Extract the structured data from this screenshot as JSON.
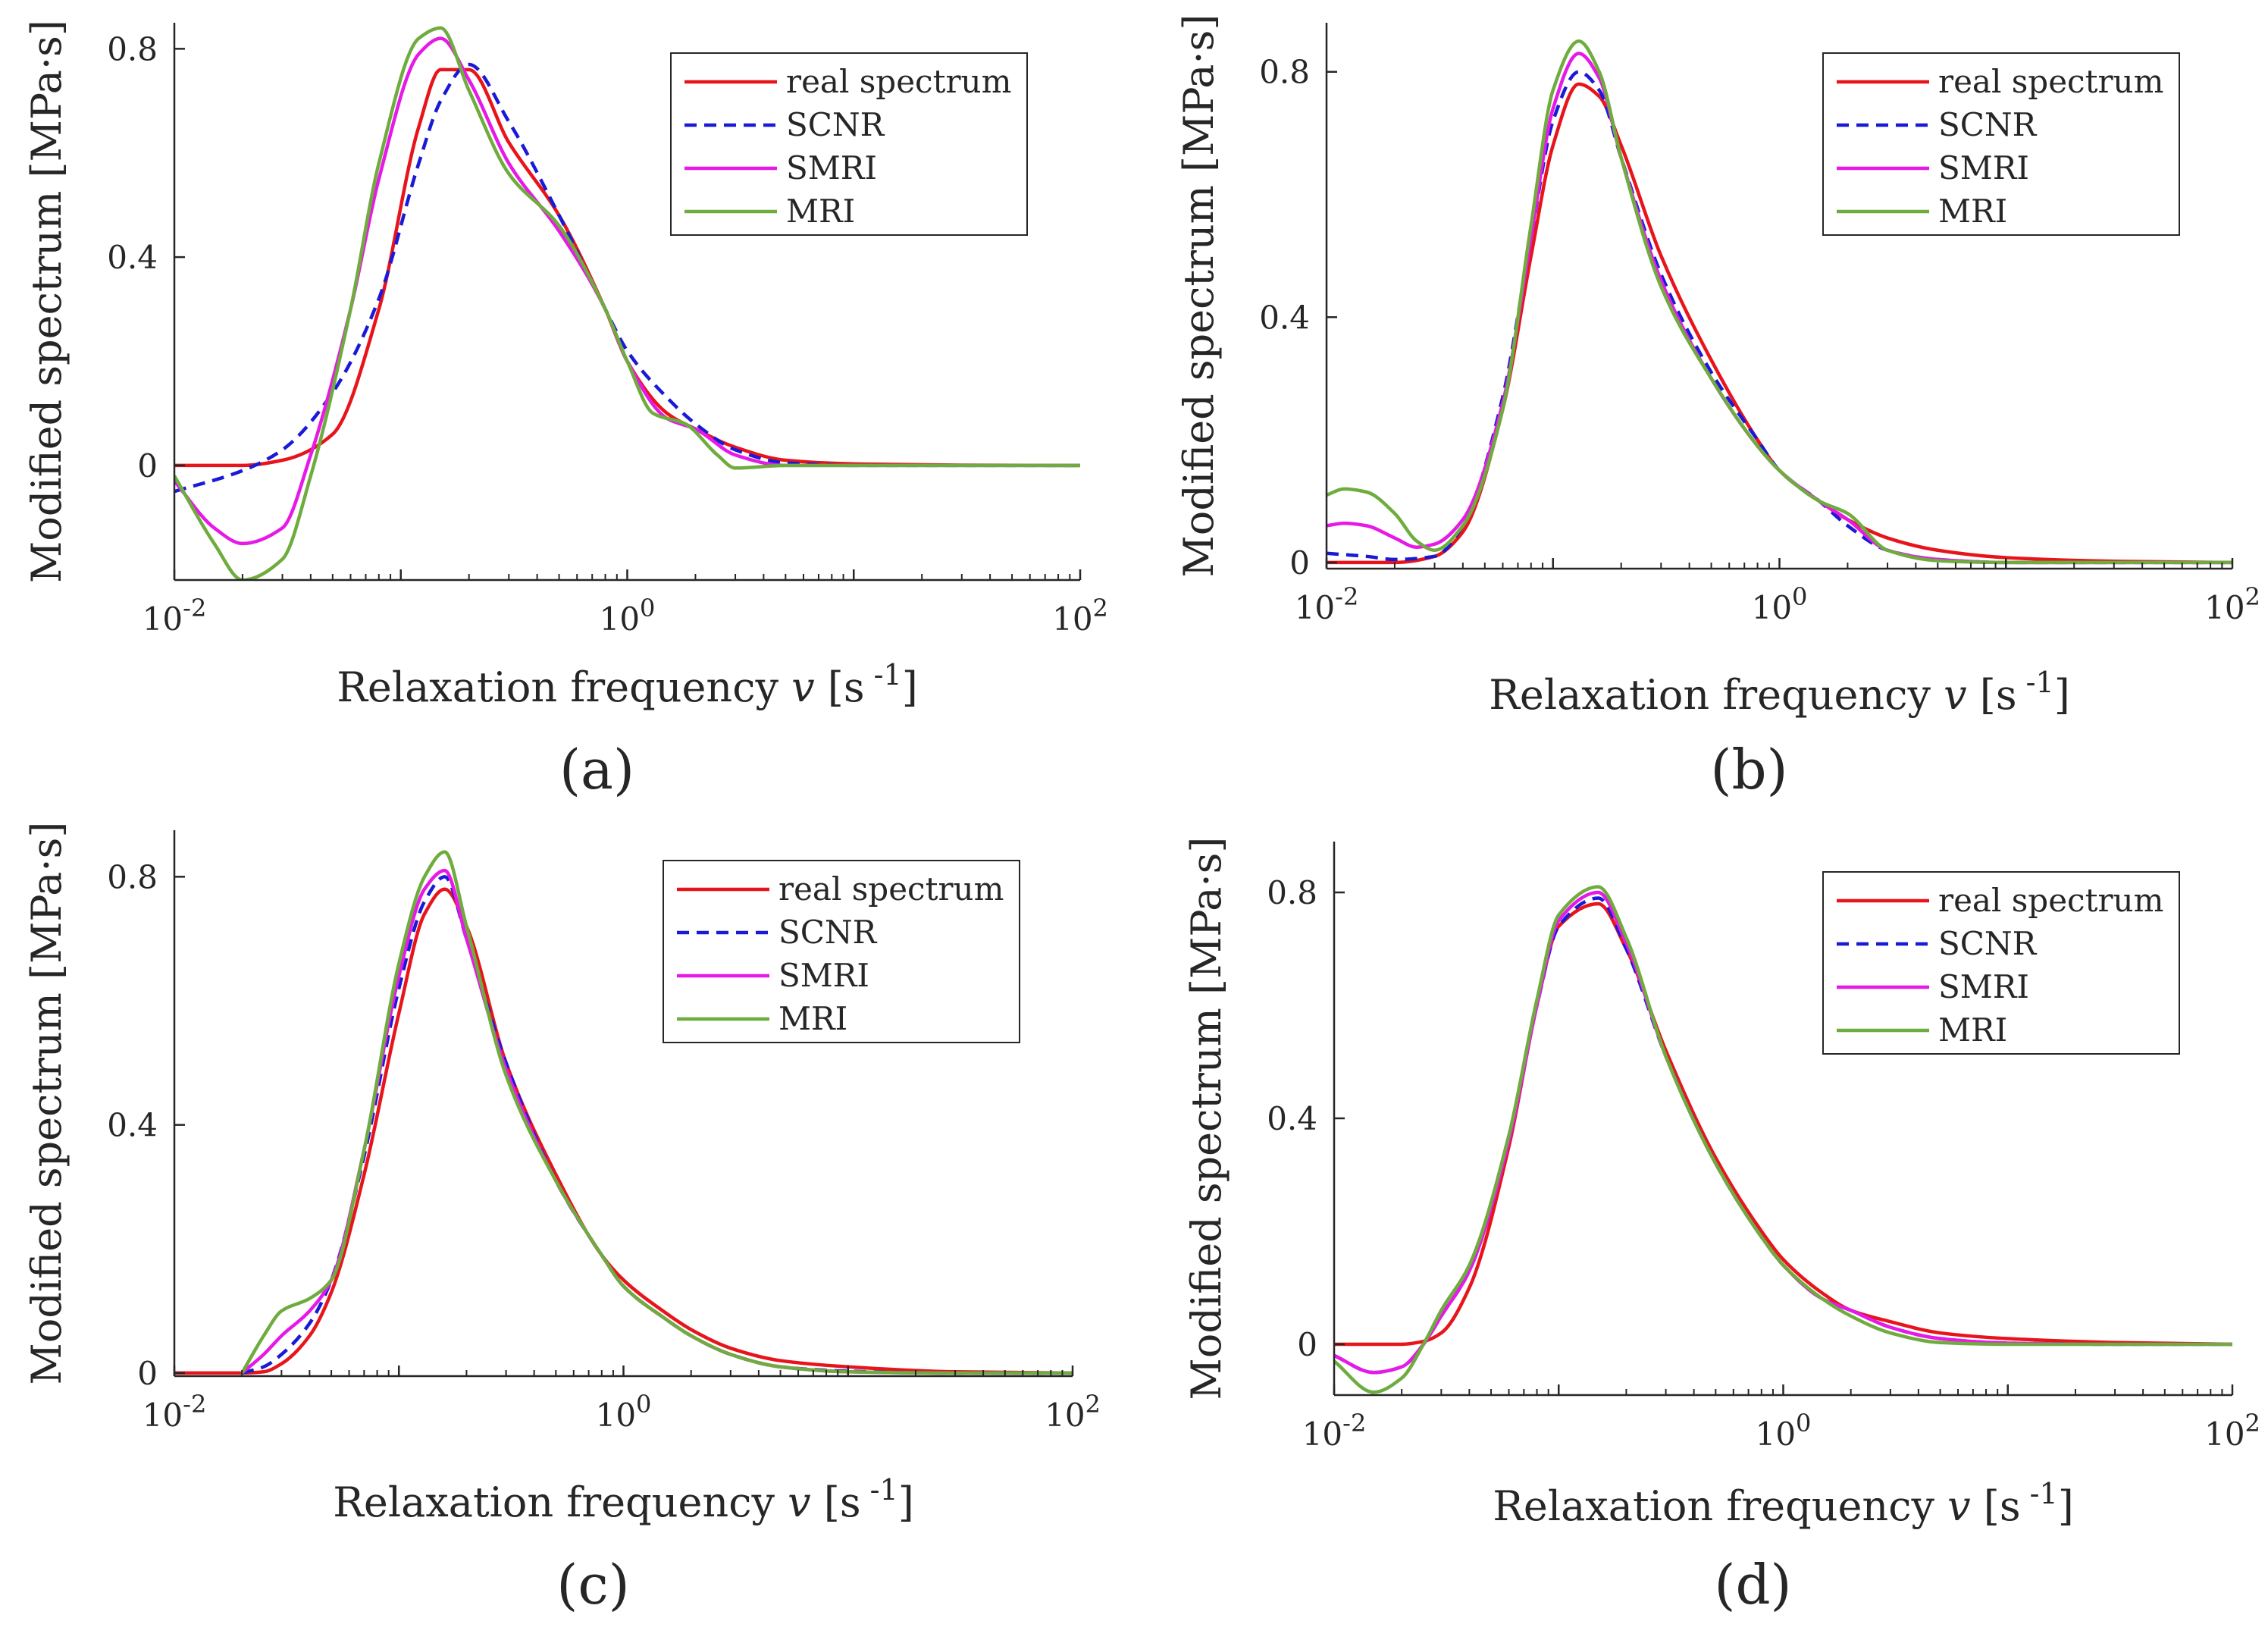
{
  "figure": {
    "panels": [
      "(a)",
      "(b)",
      "(c)",
      "(d)"
    ]
  },
  "colors": {
    "real": "#e8141b",
    "scnr": "#1a1ad6",
    "smri": "#e619e6",
    "mri": "#6fac3e",
    "axis": "#262626"
  },
  "chart_data": [
    {
      "id": "a",
      "panel_label": "(a)",
      "type": "line",
      "xscale": "log",
      "xlim": [
        0.01,
        100
      ],
      "ylim": [
        -0.22,
        0.85
      ],
      "yticks": [
        0,
        0.4,
        0.8
      ],
      "ytick_labels": [
        "0",
        "0.4",
        "0.8"
      ],
      "xticks": [
        0.01,
        1,
        100
      ],
      "xtick_bases": [
        "10",
        "10",
        "10"
      ],
      "xtick_exps": [
        "-2",
        "0",
        "2"
      ],
      "xlabel_text": "Relaxation frequency ",
      "xlabel_var": "v",
      "xlabel_unit_open": " [s",
      "xlabel_unit_exp": " -1",
      "xlabel_unit_close": "]",
      "ylabel": "Modified spectrum  [MPa·s]",
      "legend_position": "top-right",
      "legend": [
        "real spectrum",
        "SCNR",
        "SMRI",
        "MRI"
      ],
      "series": [
        {
          "name": "real spectrum",
          "x": [
            0.01,
            0.02,
            0.03,
            0.05,
            0.08,
            0.12,
            0.15,
            0.2,
            0.3,
            0.5,
            0.8,
            1.0,
            1.5,
            2.0,
            3,
            5,
            10,
            30,
            100
          ],
          "y": [
            0,
            0,
            0.01,
            0.06,
            0.3,
            0.65,
            0.76,
            0.76,
            0.62,
            0.48,
            0.3,
            0.2,
            0.1,
            0.07,
            0.035,
            0.01,
            0.003,
            0.0005,
            0
          ]
        },
        {
          "name": "SCNR",
          "x": [
            0.01,
            0.02,
            0.03,
            0.05,
            0.08,
            0.12,
            0.15,
            0.2,
            0.3,
            0.5,
            0.8,
            1.0,
            1.5,
            2.0,
            3,
            5,
            10,
            30,
            100
          ],
          "y": [
            -0.05,
            -0.01,
            0.03,
            0.14,
            0.32,
            0.58,
            0.7,
            0.77,
            0.66,
            0.48,
            0.3,
            0.22,
            0.13,
            0.08,
            0.03,
            0.005,
            0,
            0,
            0
          ]
        },
        {
          "name": "SMRI",
          "x": [
            0.01,
            0.015,
            0.02,
            0.03,
            0.04,
            0.06,
            0.08,
            0.12,
            0.15,
            0.2,
            0.3,
            0.5,
            0.8,
            1.0,
            1.5,
            2.0,
            3,
            5,
            10,
            30,
            100
          ],
          "y": [
            -0.03,
            -0.12,
            -0.15,
            -0.12,
            0.02,
            0.3,
            0.55,
            0.79,
            0.82,
            0.74,
            0.58,
            0.45,
            0.3,
            0.2,
            0.09,
            0.07,
            0.02,
            0,
            0,
            0,
            0
          ]
        },
        {
          "name": "MRI",
          "x": [
            0.01,
            0.015,
            0.02,
            0.03,
            0.04,
            0.06,
            0.08,
            0.12,
            0.15,
            0.2,
            0.3,
            0.5,
            0.8,
            1.0,
            1.3,
            1.8,
            2.5,
            3,
            5,
            10,
            30,
            100
          ],
          "y": [
            -0.02,
            -0.15,
            -0.22,
            -0.18,
            -0.02,
            0.3,
            0.58,
            0.82,
            0.84,
            0.72,
            0.56,
            0.46,
            0.3,
            0.2,
            0.1,
            0.08,
            0.02,
            -0.005,
            0,
            0,
            0,
            0
          ]
        }
      ]
    },
    {
      "id": "b",
      "panel_label": "(b)",
      "type": "line",
      "xscale": "log",
      "xlim": [
        0.01,
        100
      ],
      "ylim": [
        -0.01,
        0.88
      ],
      "yticks": [
        0,
        0.4,
        0.8
      ],
      "ytick_labels": [
        "0",
        "0.4",
        "0.8"
      ],
      "xticks": [
        0.01,
        1,
        100
      ],
      "xtick_bases": [
        "10",
        "10",
        "10"
      ],
      "xtick_exps": [
        "-2",
        "0",
        "2"
      ],
      "xlabel_text": "Relaxation frequency ",
      "xlabel_var": "v",
      "xlabel_unit_open": " [s",
      "xlabel_unit_exp": " -1",
      "xlabel_unit_close": "]",
      "ylabel": "Modified spectrum  [MPa·s]",
      "legend_position": "top-right",
      "legend": [
        "real spectrum",
        "SCNR",
        "SMRI",
        "MRI"
      ],
      "series": [
        {
          "name": "real spectrum",
          "x": [
            0.01,
            0.02,
            0.03,
            0.04,
            0.06,
            0.08,
            0.1,
            0.13,
            0.16,
            0.2,
            0.3,
            0.5,
            0.8,
            1.0,
            1.5,
            2.0,
            3,
            5,
            10,
            30,
            100
          ],
          "y": [
            0,
            0,
            0.01,
            0.05,
            0.25,
            0.5,
            0.68,
            0.78,
            0.76,
            0.68,
            0.5,
            0.33,
            0.2,
            0.15,
            0.1,
            0.07,
            0.04,
            0.02,
            0.008,
            0.002,
            0
          ]
        },
        {
          "name": "SCNR",
          "x": [
            0.01,
            0.015,
            0.02,
            0.03,
            0.04,
            0.06,
            0.08,
            0.1,
            0.13,
            0.16,
            0.2,
            0.3,
            0.5,
            0.8,
            1.0,
            1.5,
            2.0,
            3,
            5,
            10,
            30,
            100
          ],
          "y": [
            0.015,
            0.01,
            0.005,
            0.01,
            0.06,
            0.27,
            0.53,
            0.72,
            0.8,
            0.77,
            0.66,
            0.47,
            0.31,
            0.2,
            0.15,
            0.1,
            0.06,
            0.02,
            0.005,
            0,
            0,
            0
          ]
        },
        {
          "name": "SMRI",
          "x": [
            0.01,
            0.012,
            0.015,
            0.02,
            0.025,
            0.03,
            0.04,
            0.06,
            0.08,
            0.1,
            0.13,
            0.16,
            0.2,
            0.3,
            0.5,
            0.8,
            1.0,
            1.5,
            2.0,
            3,
            5,
            10,
            30,
            100
          ],
          "y": [
            0.06,
            0.064,
            0.06,
            0.04,
            0.025,
            0.03,
            0.07,
            0.26,
            0.53,
            0.74,
            0.83,
            0.79,
            0.66,
            0.46,
            0.3,
            0.19,
            0.15,
            0.1,
            0.07,
            0.02,
            0.005,
            0,
            0,
            0
          ]
        },
        {
          "name": "MRI",
          "x": [
            0.01,
            0.012,
            0.015,
            0.02,
            0.025,
            0.03,
            0.04,
            0.06,
            0.08,
            0.1,
            0.13,
            0.16,
            0.2,
            0.3,
            0.5,
            0.8,
            1.0,
            1.5,
            2.0,
            3,
            5,
            10,
            30,
            100
          ],
          "y": [
            0.11,
            0.12,
            0.115,
            0.08,
            0.035,
            0.02,
            0.06,
            0.25,
            0.55,
            0.77,
            0.85,
            0.8,
            0.66,
            0.45,
            0.3,
            0.19,
            0.15,
            0.1,
            0.08,
            0.02,
            0.003,
            0,
            0,
            0
          ]
        }
      ]
    },
    {
      "id": "c",
      "panel_label": "(c)",
      "type": "line",
      "xscale": "log",
      "xlim": [
        0.01,
        100
      ],
      "ylim": [
        -0.005,
        0.875
      ],
      "yticks": [
        0,
        0.4,
        0.8
      ],
      "ytick_labels": [
        "0",
        "0.4",
        "0.8"
      ],
      "xticks": [
        0.01,
        1,
        100
      ],
      "xtick_bases": [
        "10",
        "10",
        "10"
      ],
      "xtick_exps": [
        "-2",
        "0",
        "2"
      ],
      "xlabel_text": "Relaxation frequency ",
      "xlabel_var": "v",
      "xlabel_unit_open": " [s",
      "xlabel_unit_exp": " -1",
      "xlabel_unit_close": "]",
      "ylabel": "Modified spectrum  [MPa·s]",
      "legend_position": "top-right",
      "legend": [
        "real spectrum",
        "SCNR",
        "SMRI",
        "MRI"
      ],
      "series": [
        {
          "name": "real spectrum",
          "x": [
            0.01,
            0.02,
            0.025,
            0.03,
            0.04,
            0.05,
            0.07,
            0.1,
            0.13,
            0.16,
            0.2,
            0.3,
            0.5,
            0.8,
            1.0,
            1.5,
            2.0,
            3,
            5,
            10,
            30,
            100
          ],
          "y": [
            0,
            0,
            0.002,
            0.015,
            0.06,
            0.13,
            0.32,
            0.58,
            0.74,
            0.78,
            0.72,
            0.5,
            0.32,
            0.19,
            0.15,
            0.1,
            0.07,
            0.04,
            0.02,
            0.01,
            0.002,
            0
          ]
        },
        {
          "name": "SCNR",
          "x": [
            0.02,
            0.025,
            0.03,
            0.04,
            0.05,
            0.07,
            0.1,
            0.13,
            0.16,
            0.2,
            0.3,
            0.5,
            0.8,
            1.0,
            1.5,
            2.0,
            3,
            5,
            10,
            30,
            100
          ],
          "y": [
            0,
            0.01,
            0.03,
            0.08,
            0.15,
            0.35,
            0.62,
            0.76,
            0.8,
            0.7,
            0.5,
            0.31,
            0.19,
            0.14,
            0.09,
            0.06,
            0.03,
            0.01,
            0.003,
            0,
            0
          ]
        },
        {
          "name": "SMRI",
          "x": [
            0.02,
            0.025,
            0.03,
            0.04,
            0.05,
            0.07,
            0.1,
            0.13,
            0.16,
            0.2,
            0.3,
            0.5,
            0.8,
            1.0,
            1.5,
            2.0,
            3,
            5,
            10,
            30,
            100
          ],
          "y": [
            0,
            0.03,
            0.06,
            0.1,
            0.15,
            0.36,
            0.64,
            0.78,
            0.81,
            0.7,
            0.49,
            0.31,
            0.19,
            0.14,
            0.09,
            0.06,
            0.03,
            0.01,
            0.002,
            0,
            0
          ]
        },
        {
          "name": "MRI",
          "x": [
            0.02,
            0.025,
            0.03,
            0.04,
            0.05,
            0.07,
            0.1,
            0.13,
            0.16,
            0.2,
            0.3,
            0.5,
            0.8,
            1.0,
            1.5,
            2.0,
            3,
            5,
            10,
            30,
            100
          ],
          "y": [
            0,
            0.06,
            0.1,
            0.12,
            0.15,
            0.36,
            0.66,
            0.8,
            0.84,
            0.72,
            0.48,
            0.31,
            0.19,
            0.14,
            0.09,
            0.06,
            0.03,
            0.01,
            0.002,
            0,
            0
          ]
        }
      ]
    },
    {
      "id": "d",
      "panel_label": "(d)",
      "type": "line",
      "xscale": "log",
      "xlim": [
        0.01,
        100
      ],
      "ylim": [
        -0.09,
        0.89
      ],
      "yticks": [
        0,
        0.4,
        0.8
      ],
      "ytick_labels": [
        "0",
        "0.4",
        "0.8"
      ],
      "xticks": [
        0.01,
        1,
        100
      ],
      "xtick_bases": [
        "10",
        "10",
        "10"
      ],
      "xtick_exps": [
        "-2",
        "0",
        "2"
      ],
      "xlabel_text": "Relaxation frequency ",
      "xlabel_var": "v",
      "xlabel_unit_open": " [s",
      "xlabel_unit_exp": " -1",
      "xlabel_unit_close": "]",
      "ylabel": "Modified spectrum  [MPa·s]",
      "legend_position": "top-right",
      "legend": [
        "real spectrum",
        "SCNR",
        "SMRI",
        "MRI"
      ],
      "series": [
        {
          "name": "real spectrum",
          "x": [
            0.01,
            0.02,
            0.025,
            0.03,
            0.04,
            0.06,
            0.08,
            0.1,
            0.15,
            0.2,
            0.3,
            0.5,
            0.8,
            1.0,
            1.5,
            2,
            3,
            5,
            10,
            30,
            100
          ],
          "y": [
            0,
            0,
            0.005,
            0.02,
            0.1,
            0.35,
            0.6,
            0.74,
            0.78,
            0.7,
            0.52,
            0.33,
            0.2,
            0.15,
            0.09,
            0.06,
            0.04,
            0.02,
            0.01,
            0.003,
            0
          ]
        },
        {
          "name": "SCNR",
          "x": [
            0.01,
            0.015,
            0.02,
            0.025,
            0.03,
            0.04,
            0.06,
            0.08,
            0.1,
            0.15,
            0.2,
            0.3,
            0.5,
            0.8,
            1.0,
            1.5,
            2,
            3,
            5,
            10,
            30,
            100
          ],
          "y": [
            -0.02,
            -0.05,
            -0.04,
            0.0,
            0.05,
            0.13,
            0.36,
            0.6,
            0.74,
            0.79,
            0.7,
            0.51,
            0.32,
            0.19,
            0.14,
            0.08,
            0.06,
            0.03,
            0.01,
            0.002,
            0,
            0
          ]
        },
        {
          "name": "SMRI",
          "x": [
            0.01,
            0.015,
            0.02,
            0.025,
            0.03,
            0.04,
            0.06,
            0.08,
            0.1,
            0.15,
            0.2,
            0.3,
            0.5,
            0.8,
            1.0,
            1.5,
            2,
            3,
            5,
            10,
            30,
            100
          ],
          "y": [
            -0.02,
            -0.05,
            -0.04,
            0.0,
            0.05,
            0.13,
            0.36,
            0.6,
            0.75,
            0.8,
            0.71,
            0.51,
            0.32,
            0.19,
            0.14,
            0.08,
            0.06,
            0.03,
            0.01,
            0.002,
            0,
            0
          ]
        },
        {
          "name": "MRI",
          "x": [
            0.01,
            0.015,
            0.02,
            0.025,
            0.03,
            0.04,
            0.06,
            0.08,
            0.1,
            0.15,
            0.2,
            0.3,
            0.5,
            0.8,
            1.0,
            1.5,
            2,
            3,
            5,
            10,
            30,
            100
          ],
          "y": [
            -0.03,
            -0.085,
            -0.06,
            0.0,
            0.06,
            0.14,
            0.37,
            0.61,
            0.76,
            0.81,
            0.72,
            0.51,
            0.32,
            0.19,
            0.14,
            0.08,
            0.05,
            0.02,
            0.003,
            0,
            0,
            0
          ]
        }
      ]
    }
  ]
}
